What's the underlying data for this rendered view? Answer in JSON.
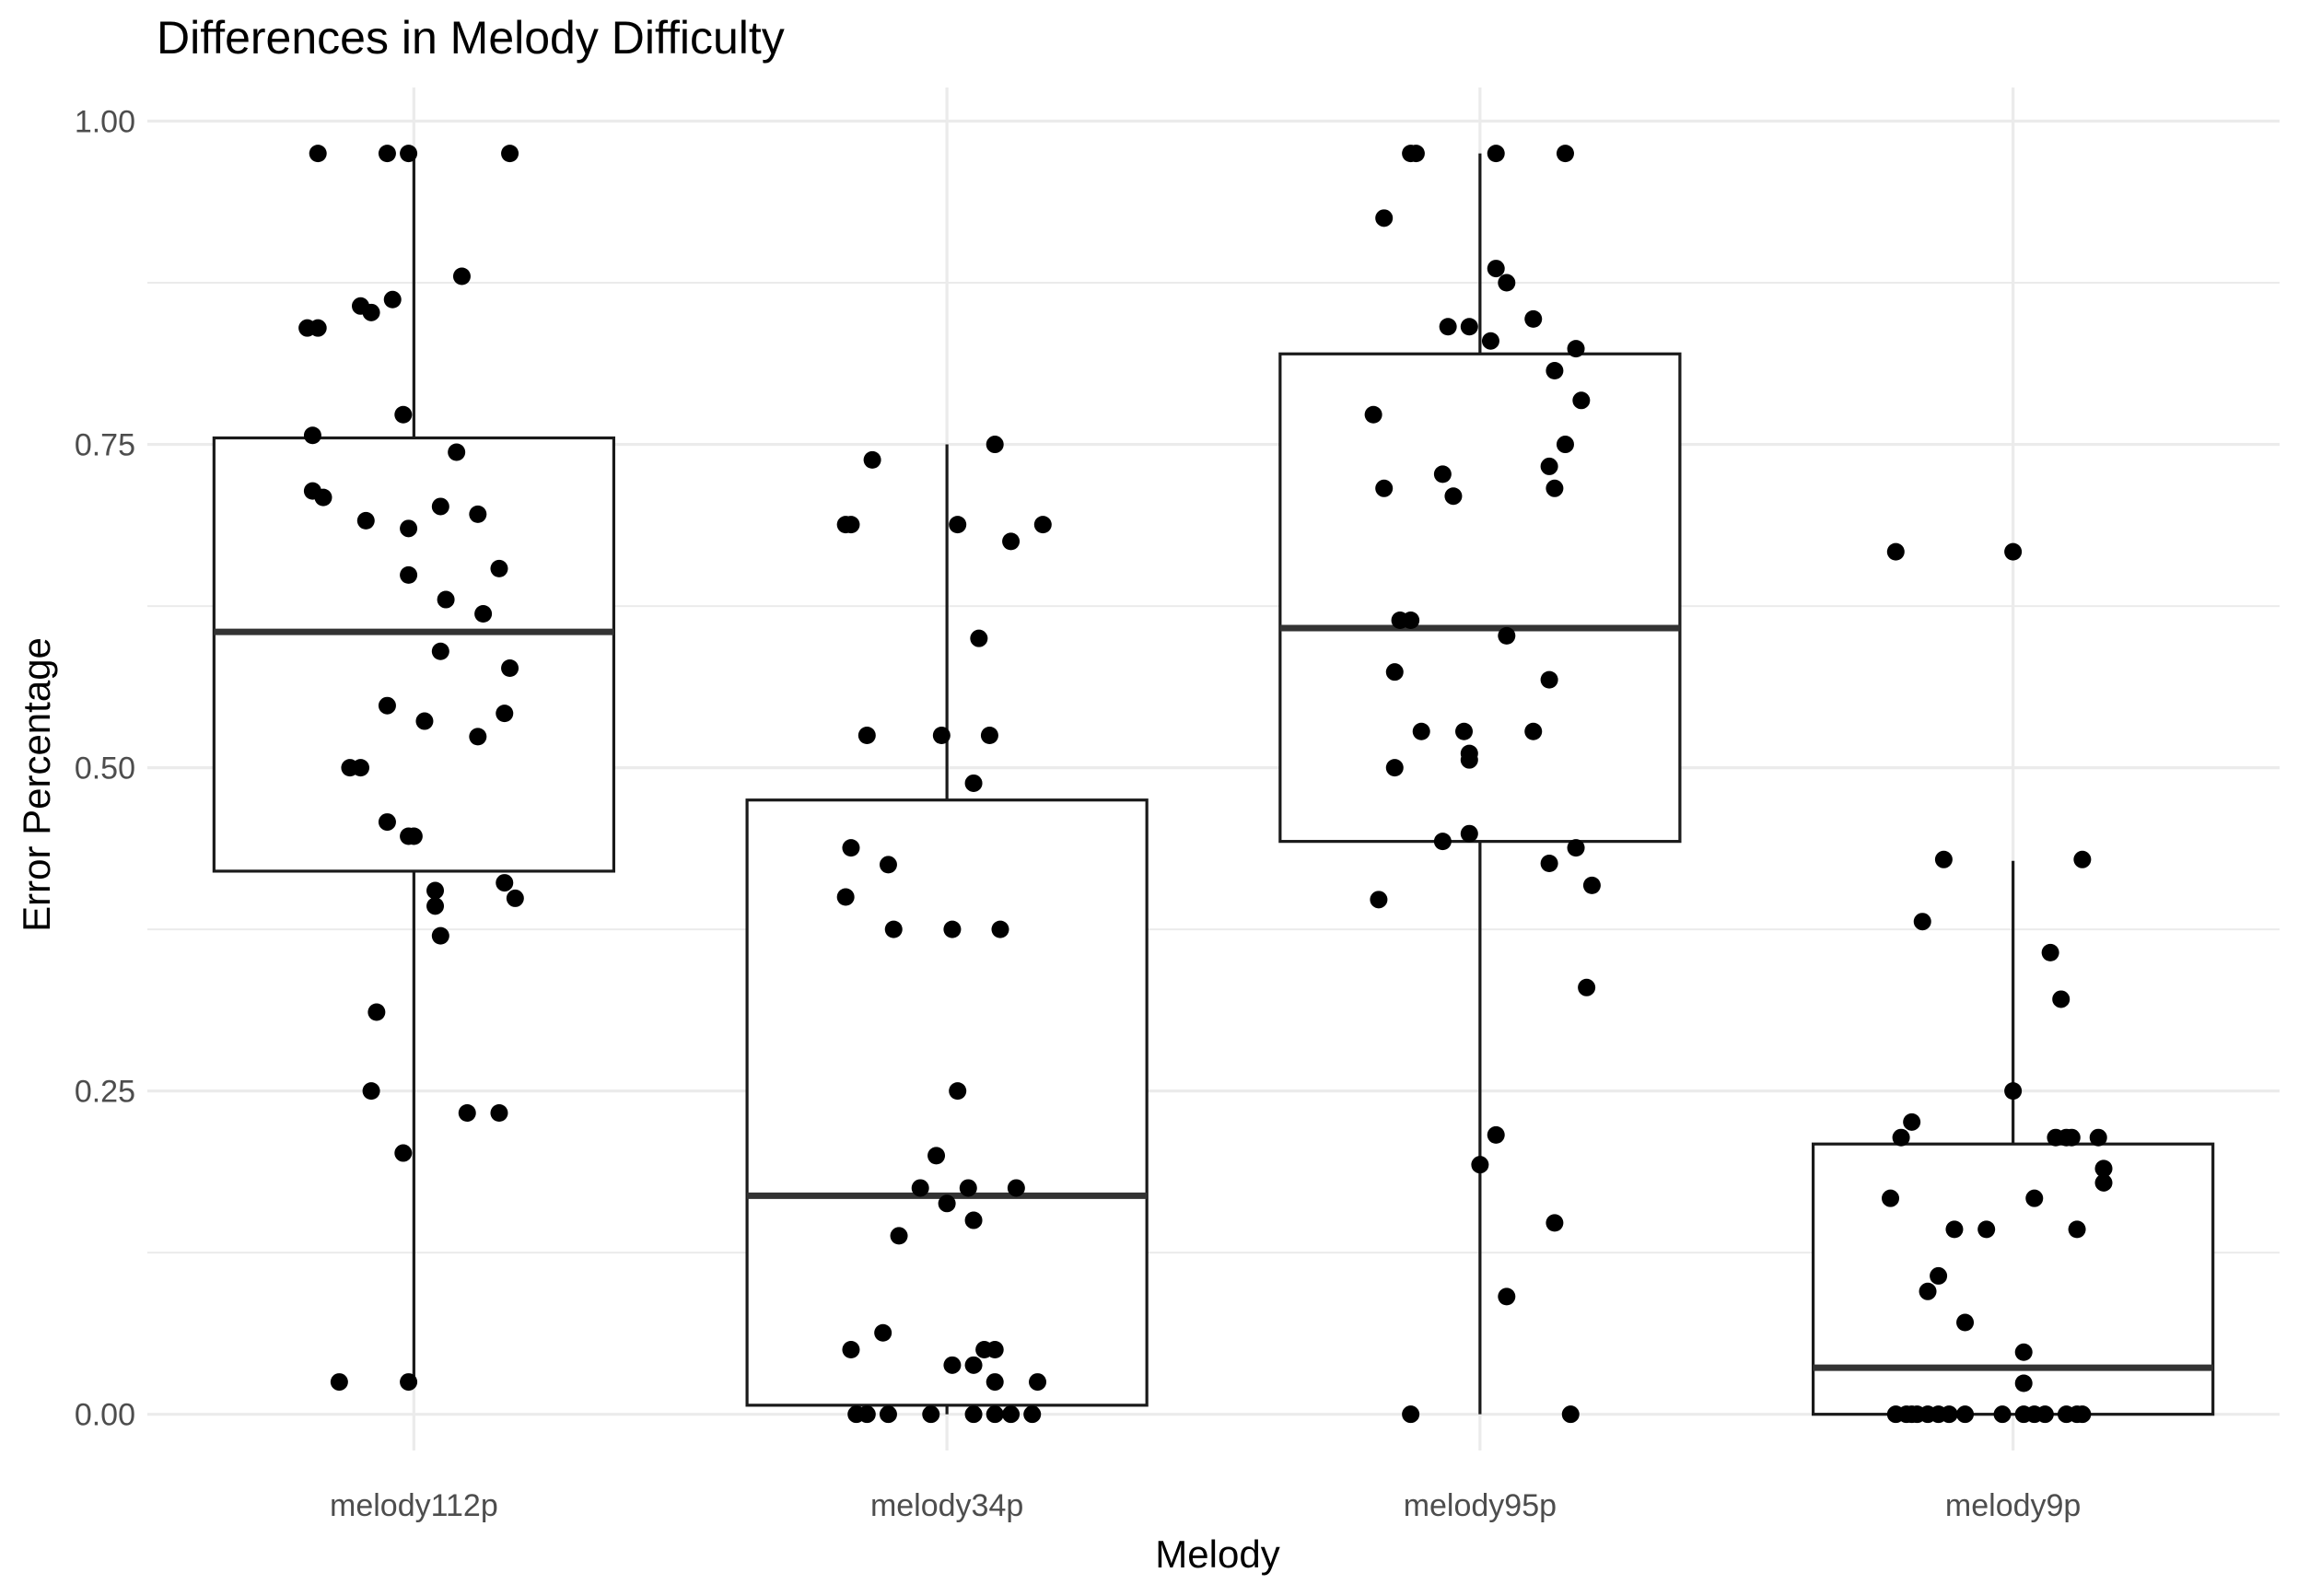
{
  "chart_data": {
    "type": "boxplot",
    "title": "Differences in Melody Difficulty",
    "xlabel": "Melody",
    "ylabel": "Error Percentage",
    "categories": [
      "melody112p",
      "melody34p",
      "melody95p",
      "melody9p"
    ],
    "ylim": [
      -0.028,
      1.026
    ],
    "yticks": [
      0,
      0.25,
      0.5,
      0.75,
      1
    ],
    "ytick_labels": [
      "0.00",
      "0.25",
      "0.50",
      "0.75",
      "1.00"
    ],
    "grid": true,
    "legend": "none",
    "colors": {
      "grid": "#ebebeb",
      "box": "#1a1a1a",
      "median": "#333333",
      "point": "#000000",
      "title": "#000000",
      "axis_text": "#4d4d4d"
    },
    "boxes": [
      {
        "category": "melody112p",
        "min": 0.025,
        "q1": 0.42,
        "median": 0.605,
        "q3": 0.755,
        "max": 0.975
      },
      {
        "category": "melody34p",
        "min": 0,
        "q1": 0.007,
        "median": 0.169,
        "q3": 0.475,
        "max": 0.75
      },
      {
        "category": "melody95p",
        "min": 0,
        "q1": 0.443,
        "median": 0.608,
        "q3": 0.82,
        "max": 0.975
      },
      {
        "category": "melody9p",
        "min": 0,
        "q1": 0,
        "median": 0.036,
        "q3": 0.209,
        "max": 0.428
      }
    ],
    "points": [
      {
        "category": "melody112p",
        "x": -0.18,
        "y": 0.975
      },
      {
        "category": "melody112p",
        "x": -0.05,
        "y": 0.975
      },
      {
        "category": "melody112p",
        "x": -0.01,
        "y": 0.975
      },
      {
        "category": "melody112p",
        "x": 0.18,
        "y": 0.975
      },
      {
        "category": "melody112p",
        "x": 0.09,
        "y": 0.88
      },
      {
        "category": "melody112p",
        "x": -0.04,
        "y": 0.862
      },
      {
        "category": "melody112p",
        "x": -0.1,
        "y": 0.857
      },
      {
        "category": "melody112p",
        "x": -0.08,
        "y": 0.852
      },
      {
        "category": "melody112p",
        "x": -0.2,
        "y": 0.84
      },
      {
        "category": "melody112p",
        "x": -0.18,
        "y": 0.84
      },
      {
        "category": "melody112p",
        "x": -0.02,
        "y": 0.773
      },
      {
        "category": "melody112p",
        "x": -0.19,
        "y": 0.757
      },
      {
        "category": "melody112p",
        "x": 0.08,
        "y": 0.744
      },
      {
        "category": "melody112p",
        "x": -0.19,
        "y": 0.714
      },
      {
        "category": "melody112p",
        "x": -0.17,
        "y": 0.709
      },
      {
        "category": "melody112p",
        "x": 0.05,
        "y": 0.702
      },
      {
        "category": "melody112p",
        "x": 0.12,
        "y": 0.696
      },
      {
        "category": "melody112p",
        "x": -0.09,
        "y": 0.691
      },
      {
        "category": "melody112p",
        "x": -0.01,
        "y": 0.685
      },
      {
        "category": "melody112p",
        "x": 0.16,
        "y": 0.654
      },
      {
        "category": "melody112p",
        "x": -0.01,
        "y": 0.649
      },
      {
        "category": "melody112p",
        "x": 0.06,
        "y": 0.63
      },
      {
        "category": "melody112p",
        "x": 0.13,
        "y": 0.619
      },
      {
        "category": "melody112p",
        "x": 0.05,
        "y": 0.59
      },
      {
        "category": "melody112p",
        "x": 0.18,
        "y": 0.577
      },
      {
        "category": "melody112p",
        "x": -0.05,
        "y": 0.548
      },
      {
        "category": "melody112p",
        "x": 0.17,
        "y": 0.542
      },
      {
        "category": "melody112p",
        "x": 0.02,
        "y": 0.536
      },
      {
        "category": "melody112p",
        "x": 0.12,
        "y": 0.524
      },
      {
        "category": "melody112p",
        "x": -0.12,
        "y": 0.5
      },
      {
        "category": "melody112p",
        "x": -0.1,
        "y": 0.5
      },
      {
        "category": "melody112p",
        "x": -0.05,
        "y": 0.458
      },
      {
        "category": "melody112p",
        "x": -0.01,
        "y": 0.447
      },
      {
        "category": "melody112p",
        "x": 0,
        "y": 0.447
      },
      {
        "category": "melody112p",
        "x": 0.17,
        "y": 0.411
      },
      {
        "category": "melody112p",
        "x": 0.04,
        "y": 0.405
      },
      {
        "category": "melody112p",
        "x": 0.19,
        "y": 0.399
      },
      {
        "category": "melody112p",
        "x": 0.04,
        "y": 0.393
      },
      {
        "category": "melody112p",
        "x": 0.05,
        "y": 0.37
      },
      {
        "category": "melody112p",
        "x": -0.07,
        "y": 0.311
      },
      {
        "category": "melody112p",
        "x": -0.08,
        "y": 0.25
      },
      {
        "category": "melody112p",
        "x": 0.1,
        "y": 0.233
      },
      {
        "category": "melody112p",
        "x": 0.16,
        "y": 0.233
      },
      {
        "category": "melody112p",
        "x": -0.02,
        "y": 0.202
      },
      {
        "category": "melody112p",
        "x": -0.14,
        "y": 0.025
      },
      {
        "category": "melody112p",
        "x": -0.01,
        "y": 0.025
      },
      {
        "category": "melody34p",
        "x": 0.09,
        "y": 0.75
      },
      {
        "category": "melody34p",
        "x": -0.14,
        "y": 0.738
      },
      {
        "category": "melody34p",
        "x": -0.19,
        "y": 0.688
      },
      {
        "category": "melody34p",
        "x": -0.18,
        "y": 0.688
      },
      {
        "category": "melody34p",
        "x": 0.02,
        "y": 0.688
      },
      {
        "category": "melody34p",
        "x": 0.18,
        "y": 0.688
      },
      {
        "category": "melody34p",
        "x": 0.12,
        "y": 0.675
      },
      {
        "category": "melody34p",
        "x": 0.06,
        "y": 0.6
      },
      {
        "category": "melody34p",
        "x": -0.15,
        "y": 0.525
      },
      {
        "category": "melody34p",
        "x": -0.01,
        "y": 0.525
      },
      {
        "category": "melody34p",
        "x": 0.08,
        "y": 0.525
      },
      {
        "category": "melody34p",
        "x": 0.05,
        "y": 0.488
      },
      {
        "category": "melody34p",
        "x": -0.18,
        "y": 0.438
      },
      {
        "category": "melody34p",
        "x": -0.11,
        "y": 0.425
      },
      {
        "category": "melody34p",
        "x": -0.19,
        "y": 0.4
      },
      {
        "category": "melody34p",
        "x": -0.1,
        "y": 0.375
      },
      {
        "category": "melody34p",
        "x": 0.01,
        "y": 0.375
      },
      {
        "category": "melody34p",
        "x": 0.1,
        "y": 0.375
      },
      {
        "category": "melody34p",
        "x": 0.02,
        "y": 0.25
      },
      {
        "category": "melody34p",
        "x": -0.02,
        "y": 0.2
      },
      {
        "category": "melody34p",
        "x": -0.05,
        "y": 0.175
      },
      {
        "category": "melody34p",
        "x": 0.04,
        "y": 0.175
      },
      {
        "category": "melody34p",
        "x": 0.13,
        "y": 0.175
      },
      {
        "category": "melody34p",
        "x": 0,
        "y": 0.163
      },
      {
        "category": "melody34p",
        "x": 0.05,
        "y": 0.15
      },
      {
        "category": "melody34p",
        "x": -0.09,
        "y": 0.138
      },
      {
        "category": "melody34p",
        "x": -0.12,
        "y": 0.063
      },
      {
        "category": "melody34p",
        "x": -0.18,
        "y": 0.05
      },
      {
        "category": "melody34p",
        "x": 0.07,
        "y": 0.05
      },
      {
        "category": "melody34p",
        "x": 0.09,
        "y": 0.05
      },
      {
        "category": "melody34p",
        "x": 0.01,
        "y": 0.038
      },
      {
        "category": "melody34p",
        "x": 0.05,
        "y": 0.038
      },
      {
        "category": "melody34p",
        "x": 0.09,
        "y": 0.025
      },
      {
        "category": "melody34p",
        "x": 0.17,
        "y": 0.025
      },
      {
        "category": "melody34p",
        "x": -0.17,
        "y": 0
      },
      {
        "category": "melody34p",
        "x": -0.15,
        "y": 0
      },
      {
        "category": "melody34p",
        "x": -0.11,
        "y": 0
      },
      {
        "category": "melody34p",
        "x": -0.03,
        "y": 0
      },
      {
        "category": "melody34p",
        "x": 0.05,
        "y": 0
      },
      {
        "category": "melody34p",
        "x": 0.09,
        "y": 0
      },
      {
        "category": "melody34p",
        "x": 0.12,
        "y": 0
      },
      {
        "category": "melody34p",
        "x": 0.16,
        "y": 0
      },
      {
        "category": "melody95p",
        "x": -0.13,
        "y": 0.975
      },
      {
        "category": "melody95p",
        "x": -0.12,
        "y": 0.975
      },
      {
        "category": "melody95p",
        "x": 0.03,
        "y": 0.975
      },
      {
        "category": "melody95p",
        "x": 0.16,
        "y": 0.975
      },
      {
        "category": "melody95p",
        "x": -0.18,
        "y": 0.925
      },
      {
        "category": "melody95p",
        "x": 0.03,
        "y": 0.886
      },
      {
        "category": "melody95p",
        "x": 0.05,
        "y": 0.875
      },
      {
        "category": "melody95p",
        "x": 0.1,
        "y": 0.847
      },
      {
        "category": "melody95p",
        "x": -0.06,
        "y": 0.841
      },
      {
        "category": "melody95p",
        "x": -0.02,
        "y": 0.841
      },
      {
        "category": "melody95p",
        "x": 0.02,
        "y": 0.83
      },
      {
        "category": "melody95p",
        "x": 0.18,
        "y": 0.824
      },
      {
        "category": "melody95p",
        "x": 0.14,
        "y": 0.807
      },
      {
        "category": "melody95p",
        "x": 0.19,
        "y": 0.784
      },
      {
        "category": "melody95p",
        "x": -0.2,
        "y": 0.773
      },
      {
        "category": "melody95p",
        "x": 0.16,
        "y": 0.75
      },
      {
        "category": "melody95p",
        "x": 0.13,
        "y": 0.733
      },
      {
        "category": "melody95p",
        "x": -0.07,
        "y": 0.727
      },
      {
        "category": "melody95p",
        "x": -0.18,
        "y": 0.716
      },
      {
        "category": "melody95p",
        "x": 0.14,
        "y": 0.716
      },
      {
        "category": "melody95p",
        "x": -0.05,
        "y": 0.71
      },
      {
        "category": "melody95p",
        "x": -0.15,
        "y": 0.614
      },
      {
        "category": "melody95p",
        "x": -0.13,
        "y": 0.614
      },
      {
        "category": "melody95p",
        "x": 0.05,
        "y": 0.602
      },
      {
        "category": "melody95p",
        "x": -0.16,
        "y": 0.574
      },
      {
        "category": "melody95p",
        "x": 0.13,
        "y": 0.568
      },
      {
        "category": "melody95p",
        "x": -0.11,
        "y": 0.528
      },
      {
        "category": "melody95p",
        "x": -0.03,
        "y": 0.528
      },
      {
        "category": "melody95p",
        "x": 0.1,
        "y": 0.528
      },
      {
        "category": "melody95p",
        "x": -0.02,
        "y": 0.511
      },
      {
        "category": "melody95p",
        "x": -0.02,
        "y": 0.506
      },
      {
        "category": "melody95p",
        "x": -0.16,
        "y": 0.5
      },
      {
        "category": "melody95p",
        "x": -0.02,
        "y": 0.449
      },
      {
        "category": "melody95p",
        "x": -0.07,
        "y": 0.443
      },
      {
        "category": "melody95p",
        "x": 0.18,
        "y": 0.438
      },
      {
        "category": "melody95p",
        "x": 0.13,
        "y": 0.426
      },
      {
        "category": "melody95p",
        "x": 0.21,
        "y": 0.409
      },
      {
        "category": "melody95p",
        "x": -0.19,
        "y": 0.398
      },
      {
        "category": "melody95p",
        "x": 0.2,
        "y": 0.33
      },
      {
        "category": "melody95p",
        "x": 0.03,
        "y": 0.216
      },
      {
        "category": "melody95p",
        "x": 0,
        "y": 0.193
      },
      {
        "category": "melody95p",
        "x": 0.14,
        "y": 0.148
      },
      {
        "category": "melody95p",
        "x": 0.05,
        "y": 0.091
      },
      {
        "category": "melody95p",
        "x": -0.13,
        "y": 0
      },
      {
        "category": "melody95p",
        "x": 0.17,
        "y": 0
      },
      {
        "category": "melody9p",
        "x": -0.22,
        "y": 0.667
      },
      {
        "category": "melody9p",
        "x": -0.0,
        "y": 0.667
      },
      {
        "category": "melody9p",
        "x": -0.13,
        "y": 0.429
      },
      {
        "category": "melody9p",
        "x": 0.13,
        "y": 0.429
      },
      {
        "category": "melody9p",
        "x": -0.17,
        "y": 0.381
      },
      {
        "category": "melody9p",
        "x": 0.07,
        "y": 0.357
      },
      {
        "category": "melody9p",
        "x": 0.09,
        "y": 0.321
      },
      {
        "category": "melody9p",
        "x": -0.0,
        "y": 0.25
      },
      {
        "category": "melody9p",
        "x": -0.19,
        "y": 0.226
      },
      {
        "category": "melody9p",
        "x": -0.21,
        "y": 0.214
      },
      {
        "category": "melody9p",
        "x": 0.08,
        "y": 0.214
      },
      {
        "category": "melody9p",
        "x": 0.1,
        "y": 0.214
      },
      {
        "category": "melody9p",
        "x": 0.11,
        "y": 0.214
      },
      {
        "category": "melody9p",
        "x": 0.16,
        "y": 0.214
      },
      {
        "category": "melody9p",
        "x": 0.17,
        "y": 0.19
      },
      {
        "category": "melody9p",
        "x": 0.17,
        "y": 0.179
      },
      {
        "category": "melody9p",
        "x": -0.23,
        "y": 0.167
      },
      {
        "category": "melody9p",
        "x": 0.04,
        "y": 0.167
      },
      {
        "category": "melody9p",
        "x": -0.11,
        "y": 0.143
      },
      {
        "category": "melody9p",
        "x": -0.05,
        "y": 0.143
      },
      {
        "category": "melody9p",
        "x": 0.12,
        "y": 0.143
      },
      {
        "category": "melody9p",
        "x": -0.14,
        "y": 0.107
      },
      {
        "category": "melody9p",
        "x": -0.16,
        "y": 0.095
      },
      {
        "category": "melody9p",
        "x": -0.09,
        "y": 0.071
      },
      {
        "category": "melody9p",
        "x": 0.02,
        "y": 0.048
      },
      {
        "category": "melody9p",
        "x": 0.02,
        "y": 0.024
      },
      {
        "category": "melody9p",
        "x": -0.22,
        "y": 0
      },
      {
        "category": "melody9p",
        "x": -0.2,
        "y": 0
      },
      {
        "category": "melody9p",
        "x": -0.19,
        "y": 0
      },
      {
        "category": "melody9p",
        "x": -0.18,
        "y": 0
      },
      {
        "category": "melody9p",
        "x": -0.16,
        "y": 0
      },
      {
        "category": "melody9p",
        "x": -0.14,
        "y": 0
      },
      {
        "category": "melody9p",
        "x": -0.12,
        "y": 0
      },
      {
        "category": "melody9p",
        "x": -0.09,
        "y": 0
      },
      {
        "category": "melody9p",
        "x": -0.02,
        "y": 0
      },
      {
        "category": "melody9p",
        "x": 0.02,
        "y": 0
      },
      {
        "category": "melody9p",
        "x": 0.04,
        "y": 0
      },
      {
        "category": "melody9p",
        "x": 0.06,
        "y": 0
      },
      {
        "category": "melody9p",
        "x": 0.1,
        "y": 0
      },
      {
        "category": "melody9p",
        "x": 0.12,
        "y": 0
      },
      {
        "category": "melody9p",
        "x": 0.13,
        "y": 0
      }
    ]
  }
}
